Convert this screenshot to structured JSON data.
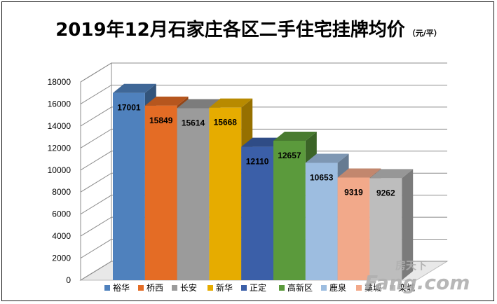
{
  "chart_data": {
    "type": "bar",
    "title": "2019年12月石家庄各区二手住宅挂牌均价",
    "unit": "（元/平）",
    "categories": [
      "裕华",
      "桥西",
      "长安",
      "新华",
      "正定",
      "高新区",
      "鹿泉",
      "藁城",
      "栾城"
    ],
    "values": [
      17001,
      15849,
      15614,
      15668,
      12110,
      12657,
      10653,
      9319,
      9262
    ],
    "colors": [
      "#4f81bd",
      "#e46c25",
      "#9b9b9b",
      "#e6ac00",
      "#3b5fa8",
      "#5b9a3c",
      "#9dbde0",
      "#f2a98a",
      "#bdbdbd"
    ],
    "ylim": [
      0,
      18000
    ],
    "yticks": [
      0,
      2000,
      4000,
      6000,
      8000,
      10000,
      12000,
      14000,
      16000,
      18000
    ],
    "grid": true,
    "legend": "bottom"
  },
  "watermark": {
    "top": "房天下",
    "bottom": "Fang.com"
  }
}
